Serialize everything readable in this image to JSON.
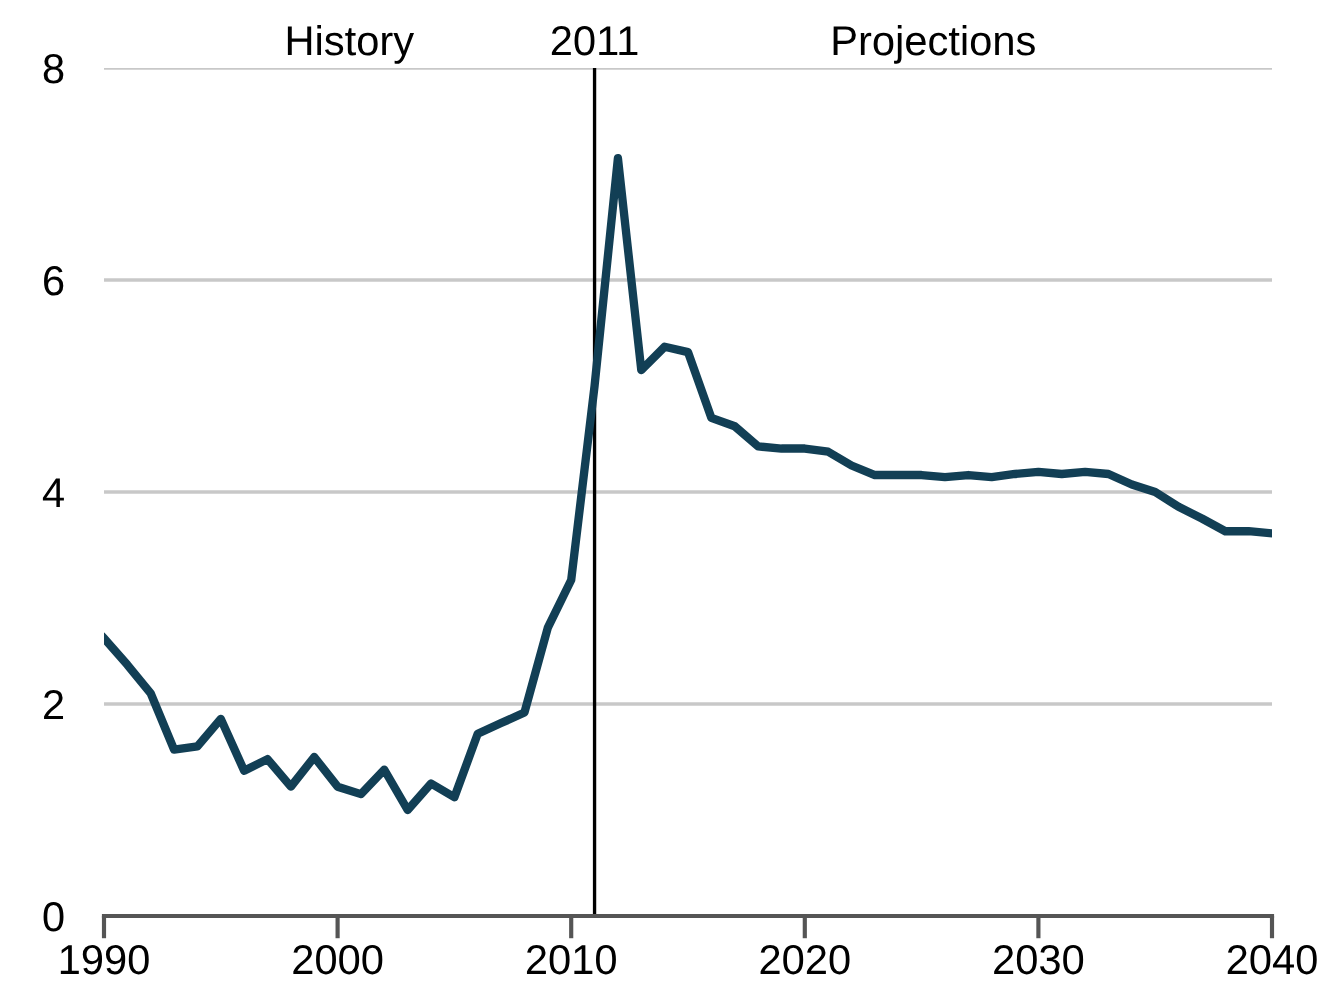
{
  "chart_data": {
    "type": "line",
    "x": [
      1990,
      1991,
      1992,
      1993,
      1994,
      1995,
      1996,
      1997,
      1998,
      1999,
      2000,
      2001,
      2002,
      2003,
      2004,
      2005,
      2006,
      2007,
      2008,
      2009,
      2010,
      2011,
      2012,
      2013,
      2014,
      2015,
      2016,
      2017,
      2018,
      2019,
      2020,
      2021,
      2022,
      2023,
      2024,
      2025,
      2026,
      2027,
      2028,
      2029,
      2030,
      2031,
      2032,
      2033,
      2034,
      2035,
      2036,
      2037,
      2038,
      2039,
      2040
    ],
    "series": [
      {
        "color": "#123f55",
        "values": [
          2.62,
          2.37,
          2.1,
          1.57,
          1.6,
          1.86,
          1.37,
          1.48,
          1.22,
          1.5,
          1.22,
          1.15,
          1.38,
          1.0,
          1.25,
          1.12,
          1.72,
          1.82,
          1.92,
          2.72,
          3.17,
          5.0,
          7.15,
          5.15,
          5.37,
          5.32,
          4.7,
          4.62,
          4.43,
          4.41,
          4.41,
          4.38,
          4.25,
          4.16,
          4.16,
          4.16,
          4.14,
          4.16,
          4.14,
          4.17,
          4.19,
          4.17,
          4.19,
          4.17,
          4.07,
          4.0,
          3.86,
          3.75,
          3.63,
          3.63,
          3.61
        ]
      }
    ],
    "xlim": [
      1990,
      2040
    ],
    "xticks": [
      1990,
      2000,
      2010,
      2020,
      2030,
      2040
    ],
    "ylim": [
      0,
      8
    ],
    "yticks": [
      0,
      2,
      4,
      6,
      8
    ],
    "grid": "y",
    "marker": "none",
    "line_style": "solid",
    "ref_lines": [
      {
        "axis": "x",
        "value": 2011,
        "label": "2011",
        "color": "#000000"
      }
    ],
    "annotations": [
      "History",
      "Projections"
    ]
  }
}
